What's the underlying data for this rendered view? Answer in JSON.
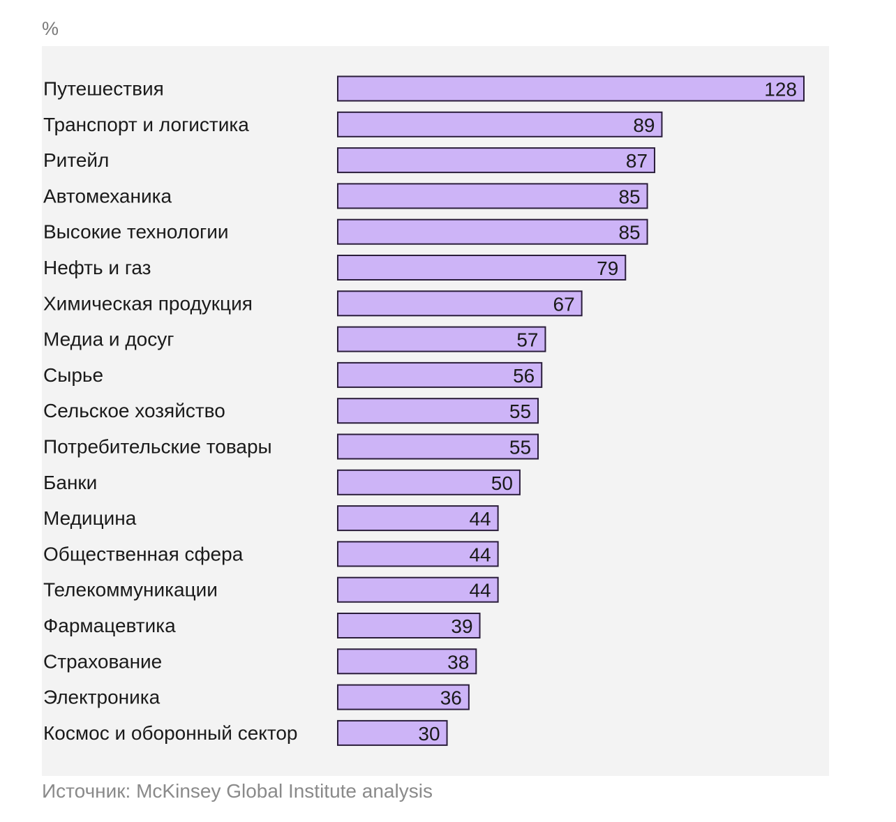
{
  "unit_label": "%",
  "source": "Источник: McKinsey Global Institute analysis",
  "colors": {
    "bar_fill": "#cdb4f7",
    "bar_stroke": "#2a1d3a",
    "panel_background": "#f3f3f3",
    "label_text": "#1a1a1a",
    "muted_text": "#8a8a8a"
  },
  "chart_data": {
    "type": "bar",
    "orientation": "horizontal",
    "categories": [
      "Путешествия",
      "Транспорт и логистика",
      "Ритейл",
      "Автомеханика",
      "Высокие технологии",
      "Нефть и газ",
      "Химическая продукция",
      "Медиа и досуг",
      "Сырье",
      "Сельское хозяйство",
      "Потребительские товары",
      "Банки",
      "Медицина",
      "Общественная сфера",
      "Телекоммуникации",
      "Фармацевтика",
      "Страхование",
      "Электроника",
      "Космос и оборонный сектор"
    ],
    "values": [
      128,
      89,
      87,
      85,
      85,
      79,
      67,
      57,
      56,
      55,
      55,
      50,
      44,
      44,
      44,
      39,
      38,
      36,
      30
    ],
    "xlim": [
      0,
      128
    ],
    "grid": false,
    "legend": "none",
    "data_labels": true
  }
}
